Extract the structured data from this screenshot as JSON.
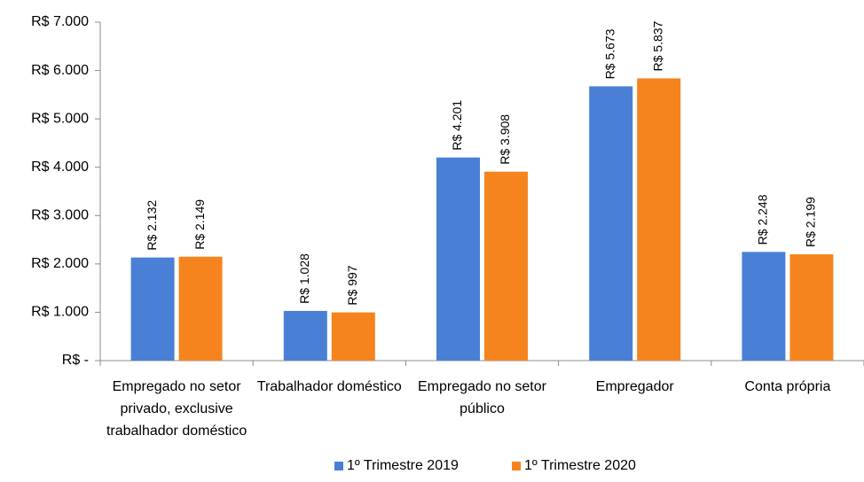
{
  "chart_data": {
    "type": "bar",
    "categories": [
      "Empregado no setor privado, exclusive trabalhador doméstico",
      "Trabalhador doméstico",
      "Empregado no setor público",
      "Empregador",
      "Conta própria"
    ],
    "series": [
      {
        "name": "1º Trimestre 2019",
        "color": "#4a7fd6",
        "values": [
          2132,
          1028,
          4201,
          5673,
          2248
        ],
        "value_labels": [
          "R$ 2.132",
          "R$ 1.028",
          "R$ 4.201",
          "R$ 5.673",
          "R$ 2.248"
        ]
      },
      {
        "name": "1º Trimestre 2020",
        "color": "#f5841f",
        "values": [
          2149,
          997,
          3908,
          5837,
          2199
        ],
        "value_labels": [
          "R$ 2.149",
          "R$ 997",
          "R$ 3.908",
          "R$ 5.837",
          "R$ 2.199"
        ]
      }
    ],
    "ylim": [
      0,
      7000
    ],
    "yticks": [
      {
        "value": 0,
        "label": "R$ -"
      },
      {
        "value": 1000,
        "label": "R$ 1.000"
      },
      {
        "value": 2000,
        "label": "R$ 2.000"
      },
      {
        "value": 3000,
        "label": "R$ 3.000"
      },
      {
        "value": 4000,
        "label": "R$ 4.000"
      },
      {
        "value": 5000,
        "label": "R$ 5.000"
      },
      {
        "value": 6000,
        "label": "R$ 6.000"
      },
      {
        "value": 7000,
        "label": "R$ 7.000"
      }
    ],
    "legend": "bottom"
  }
}
